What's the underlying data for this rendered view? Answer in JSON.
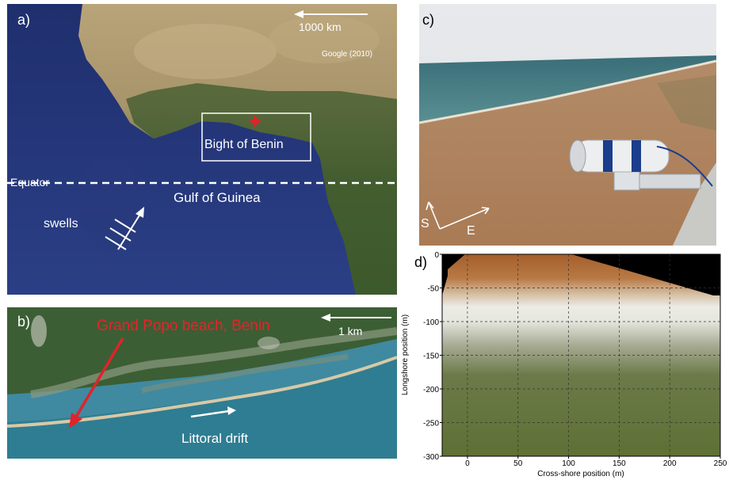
{
  "panel_a": {
    "label": "a)",
    "scale_label": "1000 km",
    "credit": "Google (2010)",
    "box_label": "Bight of Benin",
    "equator_label": "Equator",
    "gulf_label": "Gulf of Guinea",
    "swells_label": "swells"
  },
  "panel_b": {
    "label": "b)",
    "title": "Grand Popo beach, Benin",
    "scale_label": "1 km",
    "drift_label": "Littoral drift"
  },
  "panel_c": {
    "label": "c)",
    "dir_s": "S",
    "dir_e": "E"
  },
  "panel_d": {
    "label": "d)"
  },
  "chart_data": {
    "type": "heatmap",
    "xlabel": "Cross-shore position (m)",
    "ylabel": "Longshore position (m)",
    "xlim": [
      -25,
      250
    ],
    "ylim": [
      -300,
      0
    ],
    "xticks": [
      0,
      50,
      100,
      150,
      200,
      250
    ],
    "yticks": [
      0,
      -50,
      -100,
      -150,
      -200,
      -250,
      -300
    ],
    "grid": true
  }
}
